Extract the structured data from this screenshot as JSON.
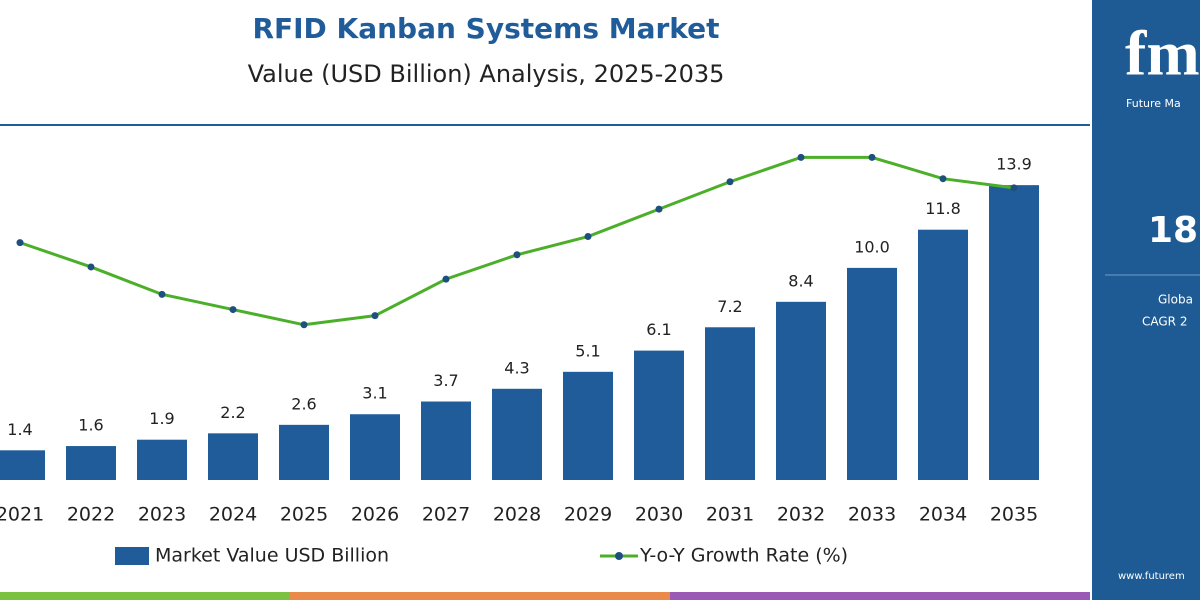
{
  "chart_data": {
    "type": "bar",
    "title": "RFID Kanban Systems Market",
    "subtitle": "Value (USD Billion) Analysis, 2025-2035",
    "categories": [
      "2021",
      "2022",
      "2023",
      "2024",
      "2025",
      "2026",
      "2027",
      "2028",
      "2029",
      "2030",
      "2031",
      "2032",
      "2033",
      "2034",
      "2035"
    ],
    "series": [
      {
        "name": "Market Value USD Billion",
        "type": "bar",
        "color": "#1f5c99",
        "values": [
          1.4,
          1.6,
          1.9,
          2.2,
          2.6,
          3.1,
          3.7,
          4.3,
          5.1,
          6.1,
          7.2,
          8.4,
          10.0,
          11.8,
          13.9
        ],
        "value_labels": [
          "1.4",
          "1.6",
          "1.9",
          "2.2",
          "2.6",
          "3.1",
          "3.7",
          "4.3",
          "5.1",
          "6.1",
          "7.2",
          "8.4",
          "10.0",
          "11.8",
          "13.9"
        ]
      },
      {
        "name": "Y-o-Y Growth Rate (%)",
        "type": "line",
        "axis": "y2",
        "color": "#4caf2a",
        "marker_color": "#1f4f7f",
        "values": [
          16.2,
          15.4,
          14.5,
          14.0,
          13.5,
          13.8,
          15.0,
          15.8,
          16.4,
          17.3,
          18.2,
          19.0,
          19.0,
          18.3,
          18.0
        ]
      }
    ],
    "ylim": [
      0,
      16.5
    ],
    "y2lim": [
      8.4,
      19.9
    ],
    "grid": false
  },
  "sidebar": {
    "logo": "fm",
    "brand": "Future Ma",
    "headline": "18",
    "line1": "Globa",
    "line2": "CAGR 2",
    "url": "www.futurem"
  }
}
